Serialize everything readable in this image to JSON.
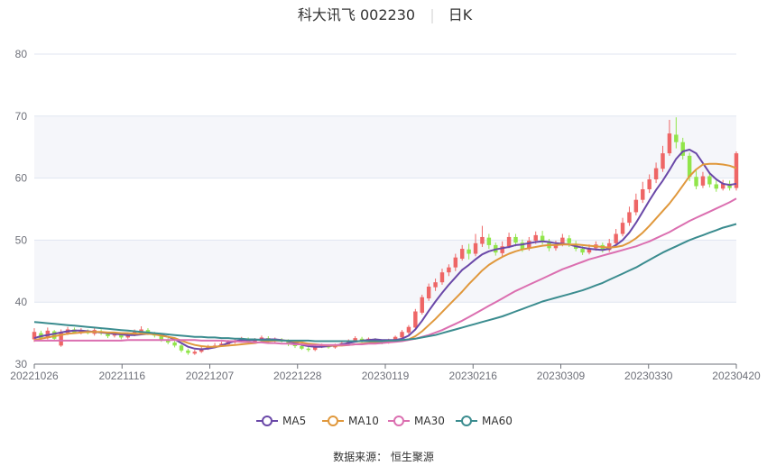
{
  "chart_data": {
    "type": "candlestick",
    "title": "科大讯飞 002230",
    "subtitle": "日K",
    "source": "数据来源： 恒生聚源",
    "ylim": [
      30,
      80
    ],
    "yticks": [
      30,
      40,
      50,
      60,
      70,
      80
    ],
    "x_tick_labels": [
      "20221026",
      "20221116",
      "20221207",
      "20221228",
      "20230119",
      "20230216",
      "20230309",
      "20230330",
      "20230420"
    ],
    "colors": {
      "up": "#ee6666",
      "down": "#91e54a",
      "ma5": "#6a48a8",
      "ma10": "#e0983c",
      "ma30": "#db6fb0",
      "ma60": "#3b8c8f",
      "band": "#f5f6fa",
      "grid": "#e0e6f1"
    },
    "candles": [
      [
        34.0,
        35.2,
        33.6,
        35.8
      ],
      [
        35.0,
        34.2,
        33.9,
        35.4
      ],
      [
        34.2,
        35.4,
        34.0,
        35.9
      ],
      [
        35.3,
        34.1,
        33.8,
        35.5
      ],
      [
        33.0,
        35.2,
        32.8,
        35.6
      ],
      [
        35.0,
        35.6,
        34.7,
        36.0
      ],
      [
        35.6,
        35.1,
        34.9,
        35.9
      ],
      [
        35.0,
        35.4,
        34.8,
        35.8
      ],
      [
        35.4,
        35.0,
        34.8,
        35.6
      ],
      [
        34.9,
        35.5,
        34.6,
        35.8
      ],
      [
        35.3,
        35.0,
        34.7,
        35.6
      ],
      [
        34.9,
        34.5,
        34.2,
        35.1
      ],
      [
        34.6,
        34.9,
        34.3,
        35.2
      ],
      [
        34.8,
        34.3,
        34.0,
        35.0
      ],
      [
        34.3,
        34.8,
        34.1,
        35.1
      ],
      [
        34.7,
        35.2,
        34.5,
        35.6
      ],
      [
        35.0,
        35.6,
        34.8,
        36.1
      ],
      [
        35.5,
        35.0,
        34.7,
        35.8
      ],
      [
        35.0,
        34.6,
        34.3,
        35.2
      ],
      [
        34.5,
        33.9,
        33.6,
        34.7
      ],
      [
        34.0,
        33.5,
        33.2,
        34.2
      ],
      [
        33.5,
        33.0,
        32.7,
        33.8
      ],
      [
        33.0,
        32.2,
        31.9,
        33.2
      ],
      [
        32.2,
        31.8,
        31.5,
        32.5
      ],
      [
        31.7,
        32.0,
        31.5,
        32.3
      ],
      [
        32.0,
        32.5,
        31.8,
        32.8
      ],
      [
        32.5,
        32.8,
        32.3,
        33.1
      ],
      [
        32.9,
        33.0,
        32.6,
        33.4
      ],
      [
        33.0,
        33.3,
        32.8,
        33.6
      ],
      [
        33.2,
        33.6,
        33.0,
        33.9
      ],
      [
        33.5,
        33.8,
        33.3,
        34.1
      ],
      [
        33.8,
        34.1,
        33.6,
        34.4
      ],
      [
        34.1,
        33.5,
        33.2,
        34.3
      ],
      [
        33.5,
        33.9,
        33.3,
        34.2
      ],
      [
        33.9,
        34.3,
        33.7,
        34.6
      ],
      [
        34.2,
        33.7,
        33.4,
        34.5
      ],
      [
        33.7,
        34.1,
        33.5,
        34.3
      ],
      [
        34.0,
        33.8,
        33.5,
        34.2
      ],
      [
        33.8,
        33.2,
        32.9,
        34.0
      ],
      [
        33.2,
        32.9,
        32.6,
        33.4
      ],
      [
        32.9,
        32.5,
        32.3,
        33.1
      ],
      [
        32.5,
        32.3,
        32.0,
        32.8
      ],
      [
        32.3,
        32.8,
        32.1,
        33.0
      ],
      [
        32.8,
        33.0,
        32.6,
        33.3
      ],
      [
        33.0,
        32.7,
        32.5,
        33.2
      ],
      [
        32.7,
        33.1,
        32.5,
        33.3
      ],
      [
        33.1,
        33.4,
        32.9,
        33.7
      ],
      [
        33.4,
        33.8,
        33.2,
        34.0
      ],
      [
        33.8,
        34.2,
        33.6,
        34.5
      ],
      [
        34.1,
        33.8,
        33.5,
        34.4
      ],
      [
        33.8,
        34.1,
        33.6,
        34.3
      ],
      [
        34.0,
        33.7,
        33.4,
        34.2
      ],
      [
        33.7,
        33.5,
        33.2,
        33.9
      ],
      [
        33.5,
        33.9,
        33.3,
        34.1
      ],
      [
        33.9,
        34.4,
        33.7,
        34.6
      ],
      [
        34.3,
        35.2,
        34.0,
        35.5
      ],
      [
        35.1,
        36.0,
        34.8,
        36.3
      ],
      [
        35.9,
        38.5,
        35.7,
        38.9
      ],
      [
        38.3,
        40.8,
        38.0,
        41.2
      ],
      [
        40.6,
        42.5,
        40.2,
        43.0
      ],
      [
        42.4,
        43.2,
        41.8,
        43.8
      ],
      [
        43.2,
        44.8,
        42.8,
        45.4
      ],
      [
        44.8,
        45.6,
        44.2,
        46.1
      ],
      [
        45.6,
        47.2,
        45.0,
        47.8
      ],
      [
        47.0,
        48.6,
        46.7,
        49.2
      ],
      [
        48.5,
        47.8,
        46.9,
        49.4
      ],
      [
        47.8,
        49.5,
        47.4,
        51.0
      ],
      [
        49.4,
        50.5,
        48.9,
        52.3
      ],
      [
        50.4,
        49.2,
        48.6,
        51.0
      ],
      [
        49.2,
        48.0,
        47.5,
        49.6
      ],
      [
        47.9,
        49.0,
        47.4,
        49.8
      ],
      [
        49.0,
        50.5,
        48.7,
        51.2
      ],
      [
        50.5,
        49.6,
        49.0,
        51.0
      ],
      [
        49.6,
        48.5,
        48.1,
        50.1
      ],
      [
        48.6,
        49.9,
        48.3,
        50.5
      ],
      [
        49.9,
        50.8,
        49.4,
        51.4
      ],
      [
        50.7,
        49.9,
        49.3,
        51.5
      ],
      [
        49.8,
        48.7,
        48.2,
        50.2
      ],
      [
        48.7,
        49.3,
        48.3,
        49.9
      ],
      [
        49.3,
        50.4,
        49.0,
        51.0
      ],
      [
        50.3,
        49.5,
        48.9,
        50.8
      ],
      [
        49.4,
        48.6,
        48.2,
        49.9
      ],
      [
        48.6,
        48.0,
        47.6,
        49.0
      ],
      [
        48.0,
        48.7,
        47.7,
        49.3
      ],
      [
        48.7,
        49.3,
        48.3,
        49.8
      ],
      [
        49.2,
        48.4,
        48.0,
        49.6
      ],
      [
        48.4,
        49.5,
        48.1,
        50.2
      ],
      [
        49.5,
        51.0,
        49.2,
        51.8
      ],
      [
        51.0,
        52.8,
        50.6,
        53.6
      ],
      [
        52.8,
        54.5,
        52.3,
        55.4
      ],
      [
        54.5,
        56.5,
        54.0,
        57.5
      ],
      [
        56.5,
        58.2,
        56.0,
        59.4
      ],
      [
        58.2,
        59.8,
        57.6,
        60.6
      ],
      [
        59.8,
        61.6,
        59.2,
        62.5
      ],
      [
        61.5,
        64.0,
        61.0,
        65.2
      ],
      [
        64.0,
        67.2,
        63.6,
        69.4
      ],
      [
        67.0,
        65.8,
        64.8,
        69.8
      ],
      [
        65.8,
        63.6,
        63.0,
        66.5
      ],
      [
        63.6,
        60.2,
        59.5,
        64.1
      ],
      [
        60.2,
        58.7,
        58.2,
        61.2
      ],
      [
        58.8,
        60.3,
        58.4,
        61.0
      ],
      [
        60.3,
        59.0,
        58.5,
        60.8
      ],
      [
        59.0,
        58.3,
        57.8,
        59.6
      ],
      [
        58.3,
        59.1,
        58.0,
        59.7
      ],
      [
        59.1,
        58.4,
        58.0,
        59.6
      ],
      [
        58.4,
        64.0,
        58.0,
        64.3
      ]
    ],
    "ma_series": [
      {
        "name": "MA5",
        "values": [
          34.2,
          34.5,
          34.7,
          34.9,
          35.1,
          35.3,
          35.4,
          35.4,
          35.3,
          35.2,
          35.1,
          35.0,
          34.9,
          34.8,
          34.7,
          34.7,
          34.8,
          34.9,
          34.9,
          34.7,
          34.4,
          34.0,
          33.4,
          32.8,
          32.5,
          32.4,
          32.5,
          32.7,
          33.0,
          33.4,
          33.7,
          33.9,
          33.9,
          33.9,
          34.0,
          34.0,
          34.0,
          33.9,
          33.7,
          33.4,
          33.1,
          32.9,
          32.8,
          32.8,
          32.9,
          33.0,
          33.2,
          33.4,
          33.6,
          33.8,
          33.9,
          34.0,
          33.9,
          33.9,
          33.9,
          34.1,
          34.6,
          35.6,
          37.0,
          38.6,
          40.1,
          41.5,
          42.8,
          44.0,
          45.2,
          46.0,
          46.9,
          47.7,
          48.2,
          48.5,
          48.7,
          48.9,
          49.2,
          49.3,
          49.5,
          49.7,
          49.8,
          49.7,
          49.5,
          49.4,
          49.3,
          49.0,
          48.8,
          48.6,
          48.5,
          48.4,
          48.6,
          49.2,
          50.0,
          51.2,
          52.8,
          54.6,
          56.4,
          58.1,
          59.6,
          61.3,
          63.1,
          64.3,
          64.6,
          64.0,
          62.4,
          60.8,
          59.8,
          59.1,
          58.9,
          59.1
        ]
      },
      {
        "name": "MA10",
        "values": [
          33.9,
          34.1,
          34.3,
          34.5,
          34.7,
          34.9,
          35.0,
          35.1,
          35.2,
          35.2,
          35.2,
          35.1,
          35.1,
          35.0,
          35.0,
          34.9,
          34.9,
          34.9,
          34.8,
          34.6,
          34.4,
          34.2,
          33.8,
          33.4,
          33.1,
          32.9,
          32.8,
          32.8,
          32.9,
          33.0,
          33.1,
          33.2,
          33.3,
          33.4,
          33.6,
          33.7,
          33.8,
          33.8,
          33.8,
          33.6,
          33.5,
          33.3,
          33.2,
          33.1,
          33.0,
          33.0,
          33.0,
          33.1,
          33.2,
          33.3,
          33.4,
          33.5,
          33.6,
          33.6,
          33.7,
          33.8,
          34.0,
          34.5,
          35.3,
          36.3,
          37.3,
          38.4,
          39.5,
          40.6,
          41.7,
          42.9,
          44.0,
          45.1,
          46.0,
          46.7,
          47.3,
          47.8,
          48.2,
          48.5,
          48.7,
          48.9,
          49.1,
          49.2,
          49.2,
          49.3,
          49.3,
          49.3,
          49.2,
          49.1,
          49.0,
          48.9,
          48.8,
          48.9,
          49.1,
          49.6,
          50.3,
          51.2,
          52.3,
          53.5,
          54.7,
          55.9,
          57.3,
          58.8,
          60.3,
          61.4,
          62.2,
          62.3,
          62.3,
          62.2,
          62.0,
          61.6
        ]
      },
      {
        "name": "MA30",
        "values": [
          33.8,
          33.8,
          33.8,
          33.8,
          33.8,
          33.8,
          33.8,
          33.8,
          33.8,
          33.8,
          33.8,
          33.8,
          33.8,
          33.8,
          33.9,
          33.9,
          33.9,
          33.9,
          33.9,
          33.9,
          33.9,
          33.9,
          33.9,
          33.9,
          33.9,
          33.8,
          33.8,
          33.8,
          33.8,
          33.7,
          33.7,
          33.6,
          33.6,
          33.5,
          33.5,
          33.4,
          33.4,
          33.3,
          33.3,
          33.2,
          33.2,
          33.1,
          33.1,
          33.1,
          33.1,
          33.1,
          33.1,
          33.1,
          33.2,
          33.2,
          33.3,
          33.3,
          33.4,
          33.5,
          33.6,
          33.7,
          33.9,
          34.1,
          34.4,
          34.7,
          35.1,
          35.5,
          36.0,
          36.5,
          37.0,
          37.6,
          38.2,
          38.8,
          39.4,
          40.0,
          40.6,
          41.2,
          41.8,
          42.3,
          42.8,
          43.3,
          43.8,
          44.3,
          44.8,
          45.3,
          45.7,
          46.1,
          46.5,
          46.9,
          47.2,
          47.5,
          47.8,
          48.1,
          48.4,
          48.7,
          49.0,
          49.4,
          49.8,
          50.3,
          50.8,
          51.3,
          51.9,
          52.5,
          53.1,
          53.6,
          54.1,
          54.6,
          55.1,
          55.6,
          56.1,
          56.7
        ]
      },
      {
        "name": "MA60",
        "values": [
          36.8,
          36.7,
          36.6,
          36.5,
          36.4,
          36.3,
          36.2,
          36.1,
          36.0,
          35.9,
          35.8,
          35.7,
          35.6,
          35.5,
          35.4,
          35.3,
          35.2,
          35.1,
          35.0,
          34.9,
          34.8,
          34.7,
          34.6,
          34.5,
          34.4,
          34.4,
          34.3,
          34.3,
          34.2,
          34.2,
          34.1,
          34.1,
          34.0,
          34.0,
          33.9,
          33.9,
          33.9,
          33.8,
          33.8,
          33.8,
          33.8,
          33.8,
          33.7,
          33.7,
          33.7,
          33.7,
          33.7,
          33.7,
          33.7,
          33.7,
          33.7,
          33.7,
          33.7,
          33.8,
          33.8,
          33.9,
          34.0,
          34.1,
          34.3,
          34.5,
          34.7,
          35.0,
          35.3,
          35.6,
          35.9,
          36.2,
          36.5,
          36.8,
          37.1,
          37.4,
          37.7,
          38.1,
          38.5,
          38.9,
          39.3,
          39.7,
          40.1,
          40.4,
          40.7,
          41.0,
          41.3,
          41.6,
          41.9,
          42.3,
          42.7,
          43.1,
          43.6,
          44.1,
          44.6,
          45.1,
          45.6,
          46.2,
          46.8,
          47.4,
          48.0,
          48.5,
          49.0,
          49.5,
          50.0,
          50.4,
          50.8,
          51.2,
          51.6,
          52.0,
          52.3,
          52.6
        ]
      }
    ]
  }
}
